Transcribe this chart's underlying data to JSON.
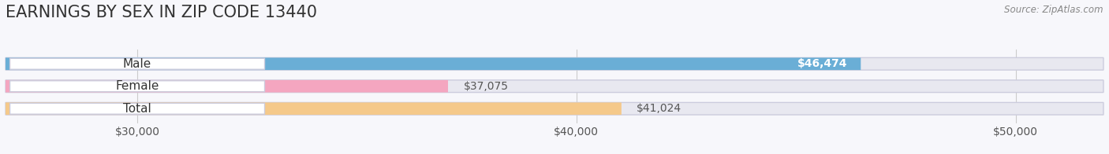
{
  "title": "EARNINGS BY SEX IN ZIP CODE 13440",
  "source_text": "Source: ZipAtlas.com",
  "categories": [
    "Male",
    "Female",
    "Total"
  ],
  "values": [
    46474,
    37075,
    41024
  ],
  "bar_colors": [
    "#6aaed6",
    "#f4a6c0",
    "#f5c98a"
  ],
  "bar_bg_color": "#e8e8f0",
  "xlim_min": 27000,
  "xlim_max": 52000,
  "xticks": [
    30000,
    40000,
    50000
  ],
  "xtick_labels": [
    "$30,000",
    "$40,000",
    "$50,000"
  ],
  "bar_height": 0.55,
  "background_color": "#f7f7fb",
  "title_fontsize": 15,
  "tick_fontsize": 10,
  "value_fontsize": 10,
  "label_fontsize": 11
}
